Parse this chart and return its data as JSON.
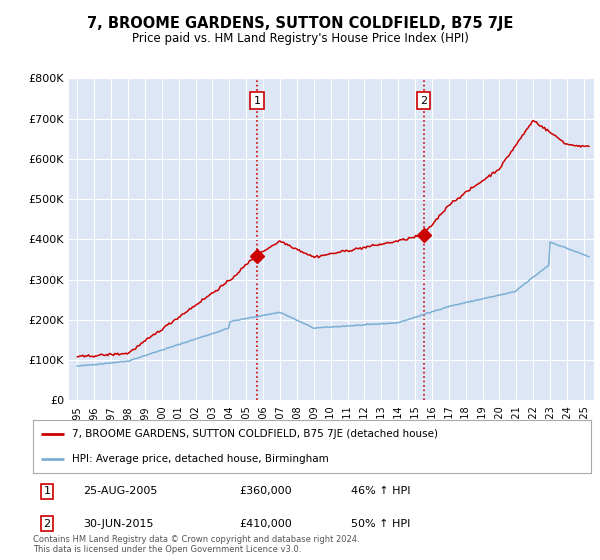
{
  "title": "7, BROOME GARDENS, SUTTON COLDFIELD, B75 7JE",
  "subtitle": "Price paid vs. HM Land Registry's House Price Index (HPI)",
  "background_color": "#dce6f5",
  "red_line_color": "#cc0000",
  "blue_line_color": "#7bafd4",
  "ylim": [
    0,
    800000
  ],
  "yticks": [
    0,
    100000,
    200000,
    300000,
    400000,
    500000,
    600000,
    700000,
    800000
  ],
  "xlim_start": 1994.5,
  "xlim_end": 2025.6,
  "sale1_x": 2005.65,
  "sale1_y": 360000,
  "sale1_label": "1",
  "sale1_date": "25-AUG-2005",
  "sale1_price": "£360,000",
  "sale1_hpi": "46% ↑ HPI",
  "sale2_x": 2015.5,
  "sale2_y": 410000,
  "sale2_label": "2",
  "sale2_date": "30-JUN-2015",
  "sale2_price": "£410,000",
  "sale2_hpi": "50% ↑ HPI",
  "legend_line1": "7, BROOME GARDENS, SUTTON COLDFIELD, B75 7JE (detached house)",
  "legend_line2": "HPI: Average price, detached house, Birmingham",
  "footnote": "Contains HM Land Registry data © Crown copyright and database right 2024.\nThis data is licensed under the Open Government Licence v3.0.",
  "xtick_years": [
    1995,
    1996,
    1997,
    1998,
    1999,
    2000,
    2001,
    2002,
    2003,
    2004,
    2005,
    2006,
    2007,
    2008,
    2009,
    2010,
    2011,
    2012,
    2013,
    2014,
    2015,
    2016,
    2017,
    2018,
    2019,
    2020,
    2021,
    2022,
    2023,
    2024,
    2025
  ]
}
